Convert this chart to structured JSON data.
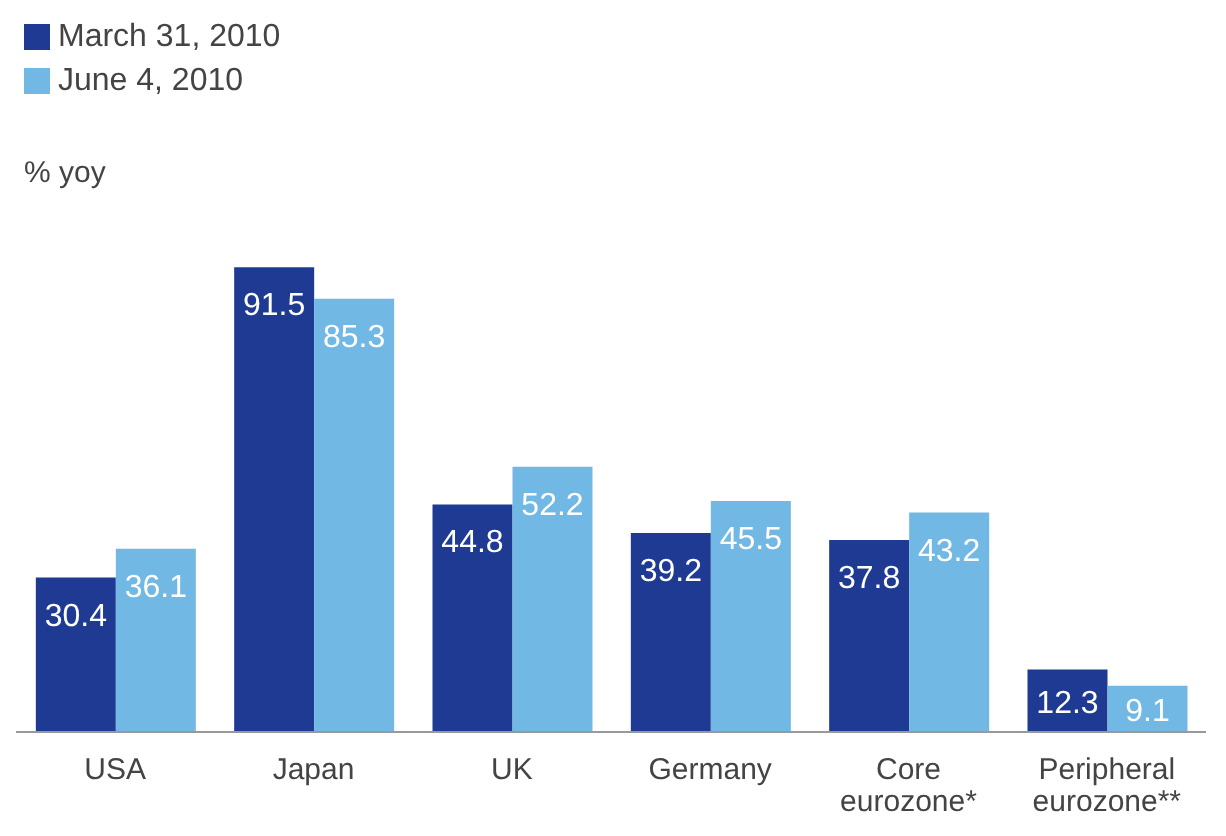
{
  "chart_data": {
    "type": "bar",
    "annotations": [
      "% yoy"
    ],
    "categories": [
      "USA",
      "Japan",
      "UK",
      "Germany",
      "Core eurozone*",
      "Peripheral eurozone**"
    ],
    "series": [
      {
        "name": "March 31, 2010",
        "color": "#1f3a93",
        "values": [
          30.4,
          91.5,
          44.8,
          39.2,
          37.8,
          12.3
        ]
      },
      {
        "name": "June 4, 2010",
        "color": "#72b8e4",
        "values": [
          36.1,
          85.3,
          52.2,
          45.5,
          43.2,
          9.1
        ]
      }
    ],
    "tick_labels": "x",
    "legend": "top left",
    "data_labels": true
  }
}
